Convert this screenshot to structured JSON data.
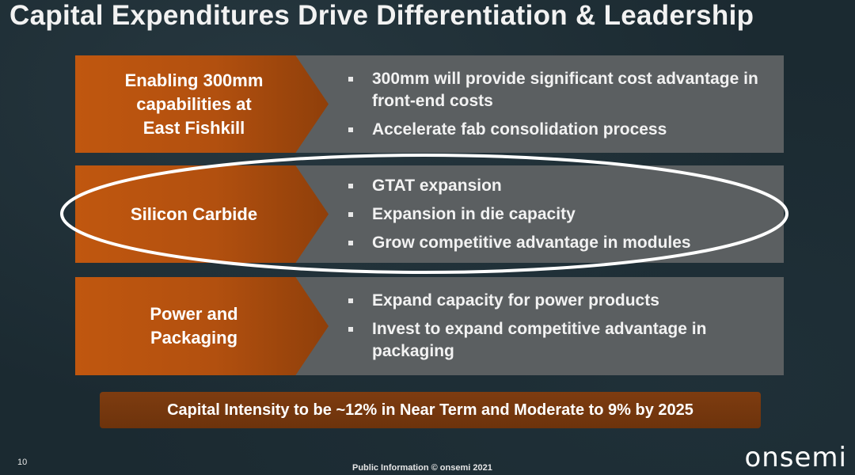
{
  "slide": {
    "title": "Capital Expenditures Drive Differentiation & Leadership"
  },
  "rows": [
    {
      "label": "Enabling 300mm\ncapabilities at\nEast Fishkill",
      "bullets": [
        "300mm will provide significant cost advantage in front-end costs",
        "Accelerate fab consolidation process"
      ]
    },
    {
      "label": "Silicon Carbide",
      "bullets": [
        "GTAT expansion",
        "Expansion in die capacity",
        "Grow competitive advantage in modules"
      ]
    },
    {
      "label": "Power and\nPackaging",
      "bullets": [
        "Expand capacity for power products",
        "Invest to expand competitive advantage in packaging"
      ]
    }
  ],
  "banner": {
    "text": "Capital Intensity to be ~12% in Near Term and Moderate to 9% by 2025"
  },
  "footer": {
    "page_number": "10",
    "text": "Public Information  © onsemi 2021",
    "logo": "onsemi"
  },
  "colors": {
    "background": "#1b2a31",
    "chevron_orange": "#c0570f",
    "content_gray": "#5b5f61",
    "banner_brown": "#7e3c10",
    "highlight_ellipse": "#ffffff"
  }
}
